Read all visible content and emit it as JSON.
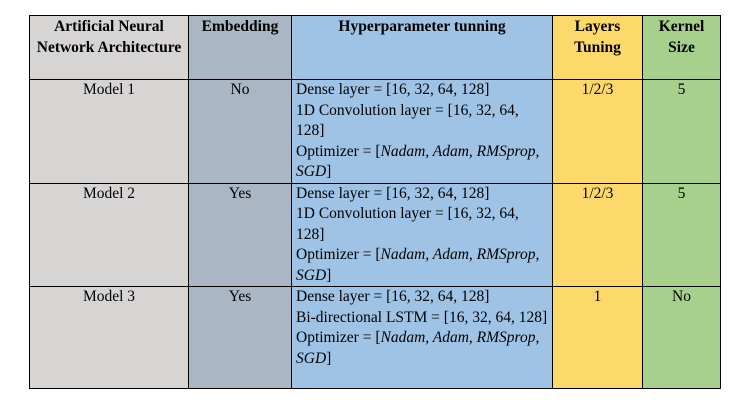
{
  "headers": {
    "architecture": "Artificial Neural Network Architecture",
    "embedding": "Embedding",
    "hyperparameter": "Hyperparameter tunning",
    "layers": "Layers Tuning",
    "kernel": "Kernel Size"
  },
  "rows": [
    {
      "model": "Model 1",
      "embedding": "No",
      "dense": "Dense layer = [16, 32, 64, 128]",
      "second_layer": "1D Convolution layer = [16, 32, 64, 128]",
      "optimizer_label": "Optimizer = [",
      "optimizer_values": "Nadam, Adam, RMSprop, SGD",
      "optimizer_close": "]",
      "layers": "1/2/3",
      "kernel": "5"
    },
    {
      "model": "Model 2",
      "embedding": "Yes",
      "dense": "Dense layer = [16, 32, 64, 128]",
      "second_layer": "1D Convolution layer = [16, 32, 64, 128]",
      "optimizer_label": "Optimizer = [",
      "optimizer_values": "Nadam, Adam, RMSprop, SGD",
      "optimizer_close": "]",
      "layers": "1/2/3",
      "kernel": "5"
    },
    {
      "model": "Model 3",
      "embedding": "Yes",
      "dense": "Dense layer = [16, 32, 64, 128]",
      "second_layer": "Bi-directional LSTM = [16, 32, 64, 128]",
      "optimizer_label": "Optimizer = [",
      "optimizer_values": "Nadam, Adam, RMSprop, SGD",
      "optimizer_close": "]",
      "layers": "1",
      "kernel": "No"
    }
  ]
}
